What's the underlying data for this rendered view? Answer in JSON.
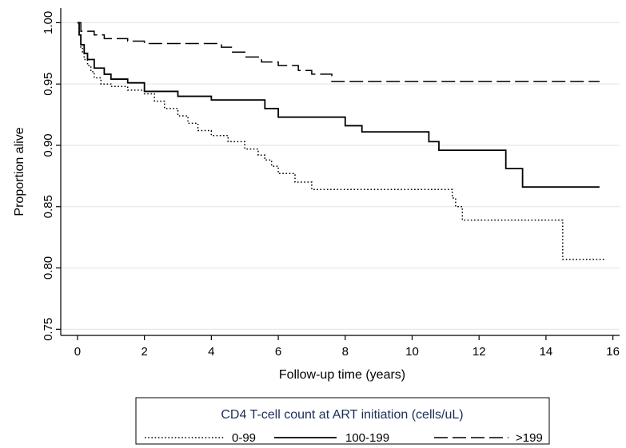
{
  "chart_data": {
    "type": "line",
    "step": true,
    "xlabel": "Follow-up time (years)",
    "ylabel": "Proportion alive",
    "xlim": [
      -0.5,
      16.2
    ],
    "ylim": [
      0.745,
      1.012
    ],
    "x_ticks": [
      0,
      2,
      4,
      6,
      8,
      10,
      12,
      14,
      16
    ],
    "x_tick_labels": [
      "0",
      "2",
      "4",
      "6",
      "8",
      "10",
      "12",
      "14",
      "16"
    ],
    "y_ticks": [
      0.75,
      0.8,
      0.85,
      0.9,
      0.95,
      1.0
    ],
    "y_tick_labels": [
      "0.75",
      "0.80",
      "0.85",
      "0.90",
      "0.95",
      "1.00"
    ],
    "grid": "horizontal",
    "legend": {
      "title": "CD4 T-cell count at ART initiation (cells/uL)",
      "position": "bottom"
    },
    "series": [
      {
        "name": "0-99",
        "style": "dotted",
        "x": [
          0,
          0.05,
          0.1,
          0.15,
          0.2,
          0.3,
          0.4,
          0.5,
          0.7,
          1.0,
          1.5,
          2.0,
          2.3,
          2.6,
          3.0,
          3.3,
          3.6,
          4.0,
          4.5,
          5.0,
          5.4,
          5.6,
          5.8,
          6.0,
          6.5,
          7.0,
          8.0,
          11.2,
          11.3,
          11.5,
          12.0,
          14.5,
          15.8
        ],
        "y": [
          1.0,
          0.99,
          0.98,
          0.975,
          0.97,
          0.965,
          0.96,
          0.955,
          0.95,
          0.948,
          0.945,
          0.942,
          0.936,
          0.93,
          0.924,
          0.918,
          0.912,
          0.908,
          0.903,
          0.897,
          0.892,
          0.888,
          0.883,
          0.877,
          0.87,
          0.864,
          0.864,
          0.857,
          0.85,
          0.839,
          0.839,
          0.807,
          0.807
        ]
      },
      {
        "name": "100-199",
        "style": "solid",
        "x": [
          0,
          0.05,
          0.1,
          0.2,
          0.3,
          0.5,
          0.8,
          1.0,
          1.5,
          2.0,
          3.0,
          4.0,
          5.0,
          5.6,
          6.0,
          8.0,
          8.5,
          10.0,
          10.5,
          10.8,
          12.0,
          12.8,
          13.3,
          15.6
        ],
        "y": [
          1.0,
          0.99,
          0.982,
          0.975,
          0.97,
          0.963,
          0.958,
          0.954,
          0.951,
          0.944,
          0.94,
          0.937,
          0.937,
          0.93,
          0.923,
          0.916,
          0.911,
          0.911,
          0.903,
          0.896,
          0.896,
          0.881,
          0.866,
          0.866
        ]
      },
      {
        "name": ">199",
        "style": "dashed",
        "x": [
          0,
          0.1,
          0.5,
          0.8,
          1.5,
          2.0,
          3.0,
          4.0,
          4.3,
          4.6,
          5.0,
          5.5,
          6.0,
          6.6,
          7.0,
          7.6,
          15.6
        ],
        "y": [
          1.0,
          0.993,
          0.99,
          0.987,
          0.985,
          0.983,
          0.983,
          0.983,
          0.98,
          0.976,
          0.972,
          0.968,
          0.965,
          0.961,
          0.958,
          0.952,
          0.952
        ]
      }
    ]
  }
}
